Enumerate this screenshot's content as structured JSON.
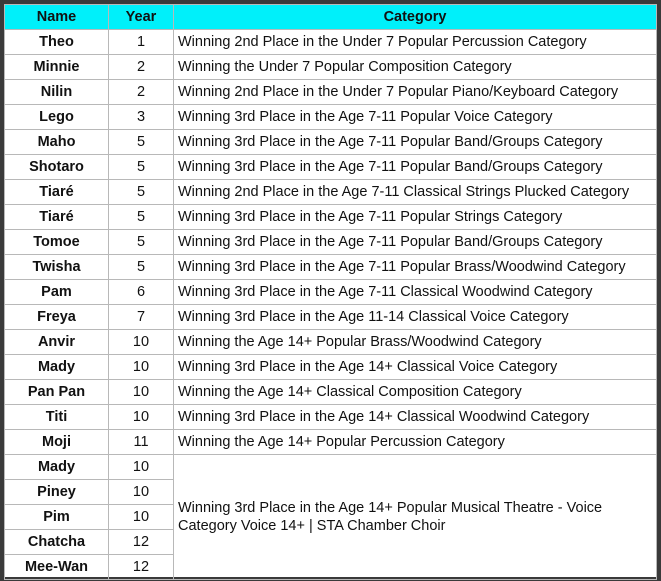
{
  "headers": {
    "name": "Name",
    "year": "Year",
    "category": "Category"
  },
  "header_color": "#00f0fa",
  "rows": [
    {
      "name": "Theo",
      "year": "1",
      "category": "Winning 2nd Place in the Under 7 Popular Percussion Category"
    },
    {
      "name": "Minnie",
      "year": "2",
      "category": "Winning the Under 7 Popular Composition Category"
    },
    {
      "name": "Nilin",
      "year": "2",
      "category": "Winning 2nd Place in the Under 7 Popular Piano/Keyboard Category"
    },
    {
      "name": "Lego",
      "year": "3",
      "category": "Winning 3rd Place in the Age 7-11 Popular Voice Category"
    },
    {
      "name": "Maho",
      "year": "5",
      "category": "Winning 3rd Place in the Age 7-11 Popular Band/Groups Category"
    },
    {
      "name": "Shotaro",
      "year": "5",
      "category": "Winning 3rd Place in the Age 7-11 Popular Band/Groups Category"
    },
    {
      "name": "Tiaré",
      "year": "5",
      "category": "Winning 2nd Place in the Age 7-11 Classical Strings Plucked Category"
    },
    {
      "name": "Tiaré",
      "year": "5",
      "category": "Winning 3rd Place in the Age 7-11 Popular Strings Category"
    },
    {
      "name": "Tomoe",
      "year": "5",
      "category": "Winning 3rd Place in the Age 7-11 Popular Band/Groups Category"
    },
    {
      "name": "Twisha",
      "year": "5",
      "category": "Winning 3rd Place in the Age 7-11 Popular Brass/Woodwind Category"
    },
    {
      "name": "Pam",
      "year": "6",
      "category": "Winning 3rd Place in the Age 7-11 Classical Woodwind Category"
    },
    {
      "name": "Freya",
      "year": "7",
      "category": "Winning 3rd Place in the Age 11-14 Classical Voice Category"
    },
    {
      "name": "Anvir",
      "year": "10",
      "category": "Winning the Age 14+ Popular Brass/Woodwind Category"
    },
    {
      "name": "Mady",
      "year": "10",
      "category": "Winning 3rd Place in the Age 14+ Classical Voice Category"
    },
    {
      "name": "Pan Pan",
      "year": "10",
      "category": "Winning the Age 14+ Classical Composition Category"
    },
    {
      "name": "Titi",
      "year": "10",
      "category": "Winning 3rd Place in the Age 14+ Classical Woodwind Category"
    },
    {
      "name": "Moji",
      "year": "11",
      "category": "Winning the Age 14+ Popular Percussion Category"
    }
  ],
  "group": {
    "members": [
      {
        "name": "Mady",
        "year": "10"
      },
      {
        "name": "Piney",
        "year": "10"
      },
      {
        "name": "Pim",
        "year": "10"
      },
      {
        "name": "Chatcha",
        "year": "12"
      },
      {
        "name": "Mee-Wan",
        "year": "12"
      }
    ],
    "category": "Winning 3rd Place in the Age 14+ Popular Musical Theatre - Voice Category Voice 14+ | STA Chamber Choir"
  }
}
